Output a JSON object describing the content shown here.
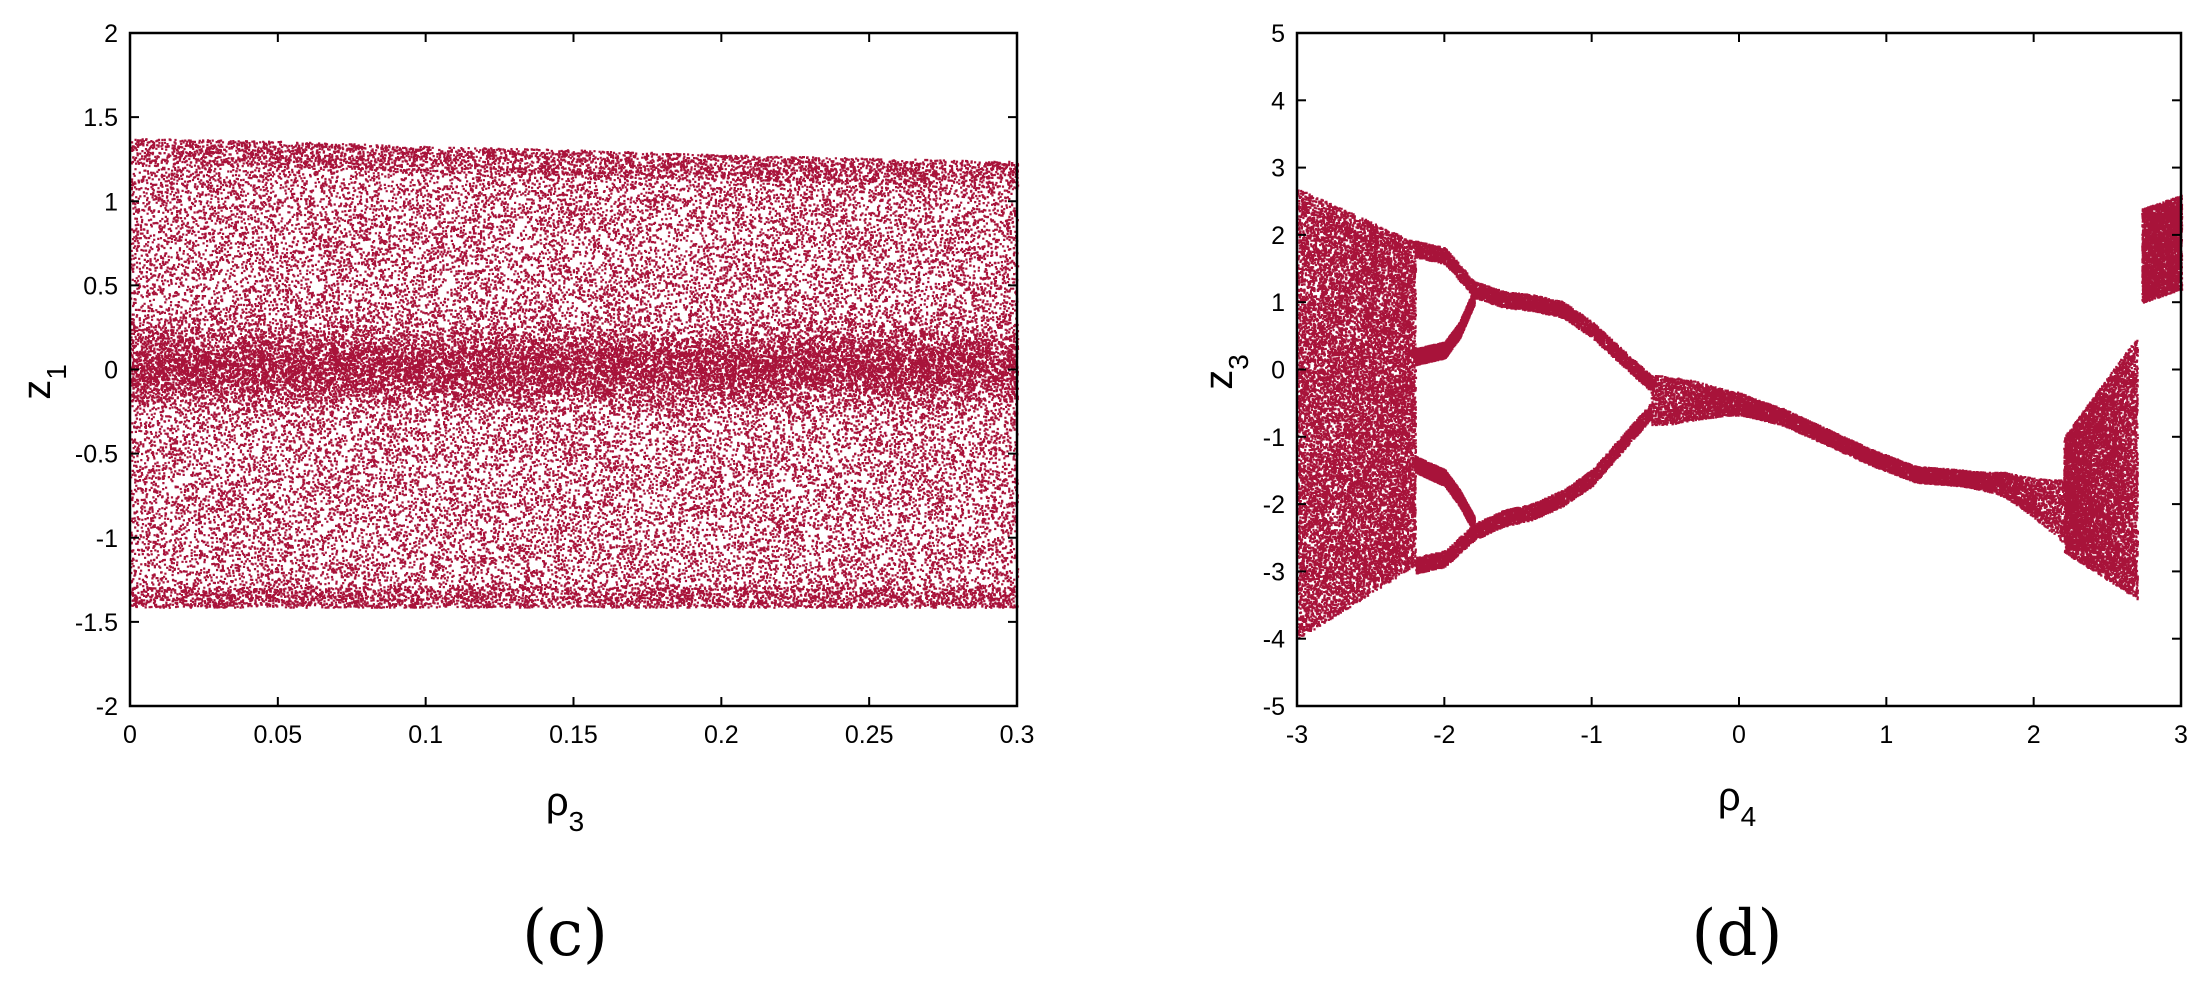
{
  "colors": {
    "points": "#a8133a",
    "axes": "#000000",
    "background": "#ffffff"
  },
  "chart_data": [
    {
      "type": "scatter",
      "title": "",
      "panel_label": "(c)",
      "xlabel": {
        "main": "ρ",
        "sub": "3"
      },
      "ylabel": {
        "main": "z",
        "sub": "1"
      },
      "xlim": [
        0,
        0.3
      ],
      "ylim": [
        -2,
        2
      ],
      "xticks": [
        0,
        0.05,
        0.1,
        0.15,
        0.2,
        0.25,
        0.3
      ],
      "xtick_labels": [
        "0",
        "0.05",
        "0.1",
        "0.15",
        "0.2",
        "0.25",
        "0.3"
      ],
      "yticks": [
        -2,
        -1.5,
        -1,
        -0.5,
        0,
        0.5,
        1,
        1.5,
        2
      ],
      "ytick_labels": [
        "-2",
        "-1.5",
        "-1",
        "-0.5",
        "0",
        "0.5",
        "1",
        "1.5",
        "2"
      ],
      "grid": false,
      "legend": "none",
      "bands": [
        {
          "x": 0,
          "min": -1.41,
          "max": 1.38
        },
        {
          "x": 0.05,
          "min": -1.41,
          "max": 1.36
        },
        {
          "x": 0.1,
          "min": -1.41,
          "max": 1.33
        },
        {
          "x": 0.15,
          "min": -1.41,
          "max": 1.31
        },
        {
          "x": 0.2,
          "min": -1.41,
          "max": 1.28
        },
        {
          "x": 0.25,
          "min": -1.41,
          "max": 1.26
        },
        {
          "x": 0.3,
          "min": -1.41,
          "max": 1.24
        }
      ],
      "dense_center": 0.02
    },
    {
      "type": "scatter",
      "title": "",
      "panel_label": "(d)",
      "xlabel": {
        "main": "ρ",
        "sub": "4"
      },
      "ylabel": {
        "main": "z",
        "sub": "3"
      },
      "xlim": [
        -3,
        3
      ],
      "ylim": [
        -5,
        5
      ],
      "xticks": [
        -3,
        -2,
        -1,
        0,
        1,
        2,
        3
      ],
      "xtick_labels": [
        "-3",
        "-2",
        "-1",
        "0",
        "1",
        "2",
        "3"
      ],
      "yticks": [
        -5,
        -4,
        -3,
        -2,
        -1,
        0,
        1,
        2,
        3,
        4,
        5
      ],
      "ytick_labels": [
        "-5",
        "-4",
        "-3",
        "-2",
        "-1",
        "0",
        "1",
        "2",
        "3",
        "4",
        "5"
      ],
      "grid": false,
      "legend": "none",
      "chaotic_regions": [
        {
          "x": [
            -3,
            -2.2
          ],
          "ymin_start": -4.0,
          "ymin_end": -2.9,
          "ymax_start": 2.7,
          "ymax_end": 1.9
        },
        {
          "x": [
            2.2,
            2.7
          ],
          "ymin_start": -2.7,
          "ymin_end": -3.4,
          "ymax_start": -1.0,
          "ymax_end": 0.5
        },
        {
          "x": [
            2.73,
            3.0
          ],
          "ymin_start": 1.0,
          "ymin_end": 1.2,
          "ymax_start": 2.4,
          "ymax_end": 2.6
        }
      ],
      "branches": [
        {
          "name": "",
          "x": [
            -2.2,
            -2.0,
            -1.8,
            -1.6,
            -1.4,
            -1.2,
            -1.0,
            -0.8,
            -0.6
          ],
          "y": [
            1.8,
            1.7,
            1.2,
            1.05,
            1.0,
            0.9,
            0.6,
            0.2,
            -0.2
          ]
        },
        {
          "name": "",
          "x": [
            -2.2,
            -2.0,
            -1.9,
            -1.8
          ],
          "y": [
            0.2,
            0.3,
            0.6,
            1.1
          ]
        },
        {
          "name": "",
          "x": [
            -2.2,
            -2.0,
            -1.9,
            -1.8
          ],
          "y": [
            -1.4,
            -1.6,
            -1.9,
            -2.3
          ]
        },
        {
          "name": "",
          "x": [
            -2.2,
            -2.0,
            -1.8,
            -1.6,
            -1.4,
            -1.2,
            -1.0,
            -0.8,
            -0.6
          ],
          "y": [
            -2.9,
            -2.8,
            -2.4,
            -2.2,
            -2.1,
            -1.9,
            -1.6,
            -1.1,
            -0.6
          ]
        },
        {
          "name": "",
          "x": [
            -0.6,
            -0.3,
            0,
            0.3,
            0.6,
            0.9,
            1.2,
            1.5,
            1.8,
            2.2
          ],
          "y": [
            -0.45,
            -0.45,
            -0.5,
            -0.7,
            -1.0,
            -1.3,
            -1.55,
            -1.6,
            -1.7,
            -2.1
          ]
        }
      ]
    }
  ]
}
